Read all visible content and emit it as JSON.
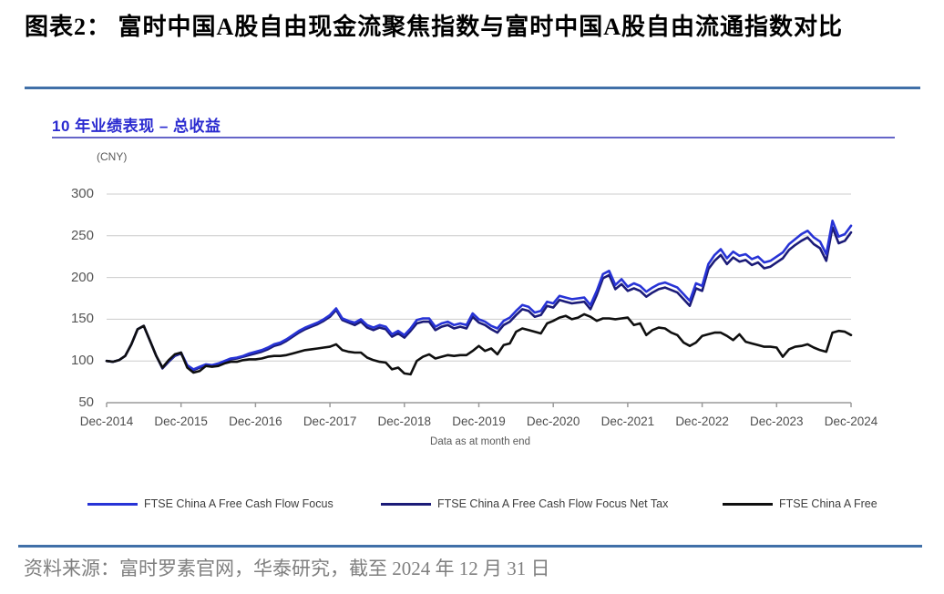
{
  "figure": {
    "title": "图表2：  富时中国A股自由现金流聚焦指数与富时中国A股自由流通指数对比",
    "source_note": "资料来源：富时罗素官网，华泰研究，截至 2024 年 12 月 31 日"
  },
  "chart": {
    "header": "10 年业绩表现 – 总收益",
    "unit_label": "(CNY)",
    "footnote": "Data as at month end"
  },
  "chart_data": {
    "type": "line",
    "title": "10 年业绩表现 – 总收益",
    "ylabel": "(CNY)",
    "ylim": [
      50,
      300
    ],
    "yticks": [
      300,
      250,
      200,
      150,
      100,
      50
    ],
    "x_tick_labels": [
      "Dec-2014",
      "Dec-2015",
      "Dec-2016",
      "Dec-2017",
      "Dec-2018",
      "Dec-2019",
      "Dec-2020",
      "Dec-2021",
      "Dec-2022",
      "Dec-2023",
      "Dec-2024"
    ],
    "x_frequency": "monthly",
    "x_note": "Data as at month end",
    "grid": "horizontal",
    "legend_position": "bottom",
    "series": [
      {
        "name": "FTSE China A Free Cash Flow Focus",
        "color": "#2733d6",
        "values": [
          100,
          99,
          101,
          106,
          120,
          138,
          142,
          124,
          106,
          92,
          100,
          107,
          110,
          95,
          90,
          93,
          96,
          95,
          97,
          100,
          103,
          104,
          106,
          109,
          111,
          113,
          116,
          120,
          122,
          126,
          131,
          136,
          140,
          143,
          146,
          150,
          155,
          163,
          151,
          148,
          146,
          150,
          143,
          140,
          143,
          141,
          132,
          136,
          131,
          139,
          149,
          151,
          151,
          141,
          145,
          147,
          143,
          145,
          143,
          157,
          150,
          147,
          142,
          139,
          148,
          152,
          160,
          167,
          165,
          158,
          160,
          171,
          169,
          178,
          176,
          174,
          175,
          176,
          167,
          184,
          204,
          208,
          191,
          198,
          189,
          193,
          190,
          183,
          188,
          192,
          194,
          191,
          188,
          180,
          172,
          193,
          190,
          216,
          227,
          234,
          223,
          231,
          226,
          228,
          222,
          225,
          218,
          220,
          225,
          230,
          240,
          246,
          252,
          256,
          248,
          243,
          228,
          268,
          249,
          252,
          262
        ]
      },
      {
        "name": "FTSE China A Free Cash Flow Focus Net Tax",
        "color": "#1b1b78",
        "values": [
          100,
          99,
          101,
          106,
          120,
          138,
          142,
          124,
          106,
          91,
          99,
          106,
          109,
          94,
          89,
          92,
          95,
          94,
          96,
          99,
          102,
          103,
          105,
          107,
          109,
          111,
          114,
          118,
          120,
          124,
          129,
          134,
          138,
          141,
          144,
          148,
          153,
          161,
          149,
          146,
          143,
          147,
          140,
          137,
          140,
          138,
          129,
          133,
          128,
          136,
          145,
          147,
          147,
          137,
          141,
          143,
          139,
          141,
          139,
          153,
          146,
          143,
          138,
          134,
          143,
          147,
          155,
          162,
          160,
          153,
          155,
          166,
          164,
          173,
          171,
          169,
          170,
          171,
          162,
          179,
          199,
          203,
          186,
          192,
          184,
          187,
          184,
          177,
          182,
          186,
          188,
          185,
          182,
          174,
          166,
          187,
          184,
          210,
          220,
          227,
          216,
          224,
          219,
          221,
          215,
          218,
          211,
          213,
          218,
          223,
          233,
          239,
          244,
          248,
          240,
          235,
          220,
          260,
          241,
          244,
          254
        ]
      },
      {
        "name": "FTSE China A Free",
        "color": "#0f0f0f",
        "values": [
          100,
          99,
          101,
          106,
          120,
          138,
          142,
          124,
          106,
          92,
          101,
          108,
          110,
          92,
          86,
          88,
          94,
          93,
          94,
          97,
          99,
          99,
          101,
          102,
          102,
          103,
          105,
          106,
          106,
          107,
          109,
          111,
          113,
          114,
          115,
          116,
          117,
          120,
          113,
          111,
          110,
          110,
          104,
          101,
          99,
          98,
          90,
          92,
          85,
          84,
          100,
          105,
          108,
          103,
          105,
          107,
          106,
          107,
          107,
          112,
          118,
          112,
          115,
          108,
          119,
          121,
          135,
          139,
          137,
          135,
          133,
          145,
          148,
          152,
          154,
          150,
          152,
          156,
          153,
          148,
          151,
          151,
          150,
          151,
          152,
          143,
          145,
          131,
          137,
          140,
          139,
          134,
          131,
          122,
          118,
          122,
          130,
          132,
          134,
          134,
          130,
          125,
          132,
          123,
          121,
          119,
          117,
          117,
          116,
          105,
          114,
          117,
          118,
          120,
          116,
          113,
          111,
          134,
          136,
          135,
          131
        ]
      }
    ]
  },
  "colors": {
    "rule_blue": "#4170a8",
    "header_blue": "#2b2bd0",
    "grid": "#cccccc",
    "axis": "#9a9a9a"
  }
}
